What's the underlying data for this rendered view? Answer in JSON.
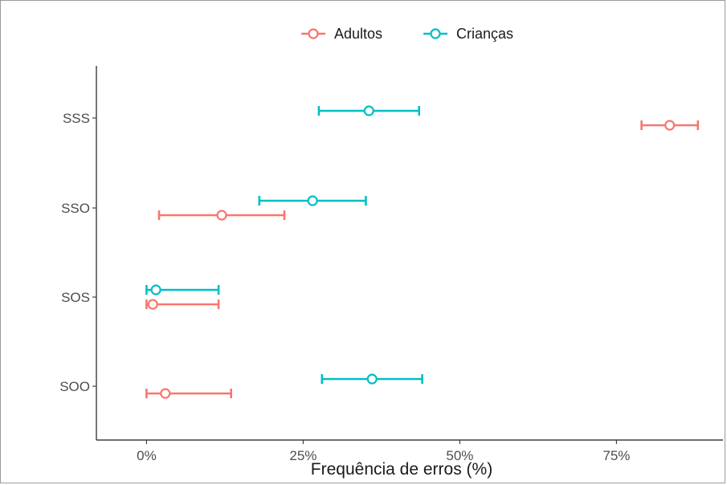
{
  "chart_data": {
    "type": "scatter",
    "title": "",
    "xlabel": "Frequência de erros (%)",
    "ylabel": "",
    "xlim": [
      -0.08,
      0.92
    ],
    "x_ticks": [
      0,
      0.25,
      0.5,
      0.75
    ],
    "x_tick_labels": [
      "0%",
      "25%",
      "50%",
      "75%"
    ],
    "categories": [
      "SSS",
      "SSO",
      "SOS",
      "SOO"
    ],
    "legend_position": "top",
    "grid": false,
    "series": [
      {
        "name": "Adultos",
        "color": "#F8766D",
        "points": [
          {
            "category": "SSS",
            "value": 0.835,
            "low": 0.79,
            "high": 0.88
          },
          {
            "category": "SSO",
            "value": 0.12,
            "low": 0.02,
            "high": 0.22
          },
          {
            "category": "SOS",
            "value": 0.01,
            "low": 0.0,
            "high": 0.115
          },
          {
            "category": "SOO",
            "value": 0.03,
            "low": 0.0,
            "high": 0.135
          }
        ]
      },
      {
        "name": "Crianças",
        "color": "#00BFC4",
        "points": [
          {
            "category": "SSS",
            "value": 0.355,
            "low": 0.275,
            "high": 0.435
          },
          {
            "category": "SSO",
            "value": 0.265,
            "low": 0.18,
            "high": 0.35
          },
          {
            "category": "SOS",
            "value": 0.015,
            "low": 0.0,
            "high": 0.115
          },
          {
            "category": "SOO",
            "value": 0.36,
            "low": 0.28,
            "high": 0.44
          }
        ]
      }
    ]
  }
}
